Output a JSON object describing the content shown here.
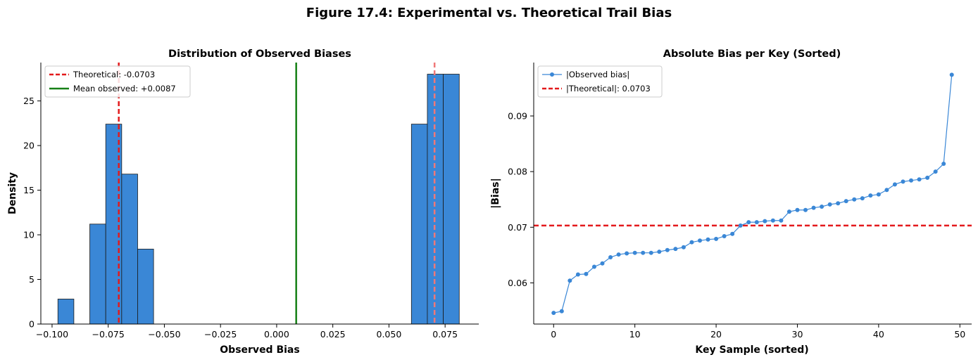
{
  "figure": {
    "title": "Figure 17.4: Experimental vs. Theoretical Trail Bias"
  },
  "colors": {
    "bar": "#3a87d6",
    "bar_edge": "#1a1a1a",
    "theoretical": "#e31a1c",
    "theoretical_light": "#f07878",
    "mean": "#168016",
    "line": "#3a87d6"
  },
  "chart_data": [
    {
      "type": "bar",
      "title": "Distribution of Observed Biases",
      "xlabel": "Observed Bias",
      "ylabel": "Density",
      "xlim": [
        -0.105,
        0.09
      ],
      "ylim": [
        0,
        29.3
      ],
      "xticks": [
        -0.1,
        -0.075,
        -0.05,
        -0.025,
        0.0,
        0.025,
        0.05,
        0.075
      ],
      "xtick_labels": [
        "−0.100",
        "−0.075",
        "−0.050",
        "−0.025",
        "0.000",
        "0.025",
        "0.050",
        "0.075"
      ],
      "yticks": [
        0,
        5,
        10,
        15,
        20,
        25
      ],
      "ytick_labels": [
        "0",
        "5",
        "10",
        "15",
        "20",
        "25"
      ],
      "bins": [
        {
          "x0": -0.0974,
          "x1": -0.0903,
          "value": 2.8
        },
        {
          "x0": -0.0832,
          "x1": -0.0761,
          "value": 11.2
        },
        {
          "x0": -0.0761,
          "x1": -0.069,
          "value": 22.4
        },
        {
          "x0": -0.069,
          "x1": -0.0619,
          "value": 16.8
        },
        {
          "x0": -0.0619,
          "x1": -0.0548,
          "value": 8.4
        },
        {
          "x0": 0.06,
          "x1": 0.0671,
          "value": 22.4
        },
        {
          "x0": 0.0671,
          "x1": 0.0742,
          "value": 28.0
        },
        {
          "x0": 0.0742,
          "x1": 0.0813,
          "value": 28.0
        }
      ],
      "vlines": [
        {
          "x": -0.0703,
          "style": "dashed",
          "color": "#e31a1c",
          "legend": "Theoretical: -0.0703"
        },
        {
          "x": 0.0087,
          "style": "solid",
          "color": "#168016",
          "legend": "Mean observed: +0.0087"
        },
        {
          "x": 0.0703,
          "style": "dashed",
          "color": "#f07878",
          "legend": ""
        }
      ],
      "legend": {
        "position": "top-left",
        "entries": [
          "Theoretical: -0.0703",
          "Mean observed: +0.0087"
        ]
      },
      "grid": false
    },
    {
      "type": "line",
      "title": "Absolute Bias per Key (Sorted)",
      "xlabel": "Key Sample (sorted)",
      "ylabel": "|Bias|",
      "xlim": [
        -2.45,
        51.45
      ],
      "ylim": [
        0.0526,
        0.0996
      ],
      "xticks": [
        0,
        10,
        20,
        30,
        40,
        50
      ],
      "xtick_labels": [
        "0",
        "10",
        "20",
        "30",
        "40",
        "50"
      ],
      "yticks": [
        0.06,
        0.07,
        0.08,
        0.09
      ],
      "ytick_labels": [
        "0.06",
        "0.07",
        "0.08",
        "0.09"
      ],
      "series": [
        {
          "name": "|Observed bias|",
          "x": [
            0,
            1,
            2,
            3,
            4,
            5,
            6,
            7,
            8,
            9,
            10,
            11,
            12,
            13,
            14,
            15,
            16,
            17,
            18,
            19,
            20,
            21,
            22,
            23,
            24,
            25,
            26,
            27,
            28,
            29,
            30,
            31,
            32,
            33,
            34,
            35,
            36,
            37,
            38,
            39,
            40,
            41,
            42,
            43,
            44,
            45,
            46,
            47,
            48,
            49
          ],
          "y": [
            0.0546,
            0.0549,
            0.0604,
            0.0615,
            0.0616,
            0.0629,
            0.0635,
            0.0646,
            0.0651,
            0.0653,
            0.0654,
            0.0654,
            0.0654,
            0.0656,
            0.0659,
            0.0661,
            0.0664,
            0.0673,
            0.0676,
            0.0678,
            0.0679,
            0.0684,
            0.0688,
            0.0703,
            0.0709,
            0.0709,
            0.0711,
            0.0712,
            0.0712,
            0.0728,
            0.0731,
            0.0731,
            0.0735,
            0.0737,
            0.0741,
            0.0743,
            0.0747,
            0.075,
            0.0752,
            0.0757,
            0.0759,
            0.0767,
            0.0777,
            0.0782,
            0.0784,
            0.0786,
            0.0789,
            0.08,
            0.0814,
            0.0974
          ]
        }
      ],
      "hline": {
        "y": 0.0703,
        "style": "dashed",
        "color": "#e31a1c",
        "legend": "|Theoretical|: 0.0703"
      },
      "legend": {
        "position": "top-left",
        "entries": [
          "|Observed bias|",
          "|Theoretical|: 0.0703"
        ]
      },
      "grid": false
    }
  ]
}
